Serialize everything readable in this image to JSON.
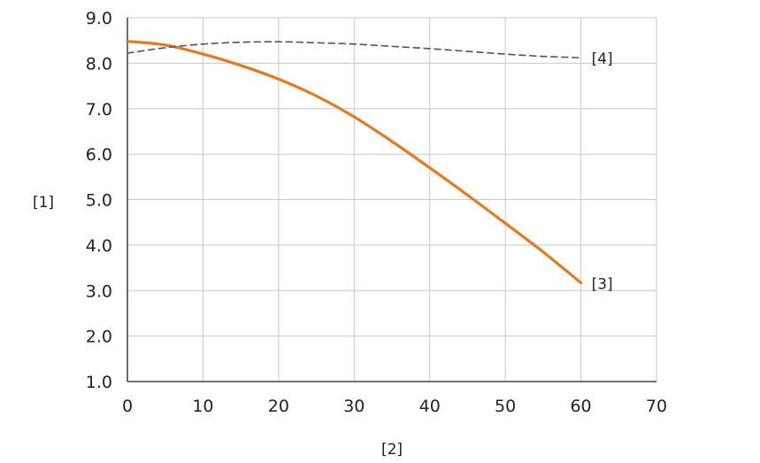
{
  "chart_data": {
    "type": "line",
    "title": "",
    "xlabel": "[2]",
    "ylabel": "[1]",
    "xlim": [
      0,
      70
    ],
    "ylim": [
      1.0,
      9.0
    ],
    "x_ticks": [
      "0",
      "10",
      "20",
      "30",
      "40",
      "50",
      "60",
      "70"
    ],
    "y_ticks": [
      "1.0",
      "2.0",
      "3.0",
      "4.0",
      "5.0",
      "6.0",
      "7.0",
      "8.0",
      "9.0"
    ],
    "grid": true,
    "series": [
      {
        "name": "[3]",
        "color": "#e57a1e",
        "style": "solid",
        "x": [
          0,
          5,
          10,
          15,
          20,
          25,
          30,
          35,
          40,
          45,
          50,
          55,
          60
        ],
        "y": [
          8.48,
          8.4,
          8.2,
          7.95,
          7.65,
          7.28,
          6.82,
          6.28,
          5.7,
          5.1,
          4.48,
          3.85,
          3.17
        ]
      },
      {
        "name": "[4]",
        "color": "#555555",
        "style": "dashed",
        "x": [
          0,
          5,
          10,
          15,
          20,
          25,
          30,
          35,
          40,
          45,
          50,
          55,
          60
        ],
        "y": [
          8.22,
          8.34,
          8.42,
          8.46,
          8.47,
          8.45,
          8.42,
          8.37,
          8.32,
          8.26,
          8.2,
          8.15,
          8.12
        ]
      }
    ]
  }
}
